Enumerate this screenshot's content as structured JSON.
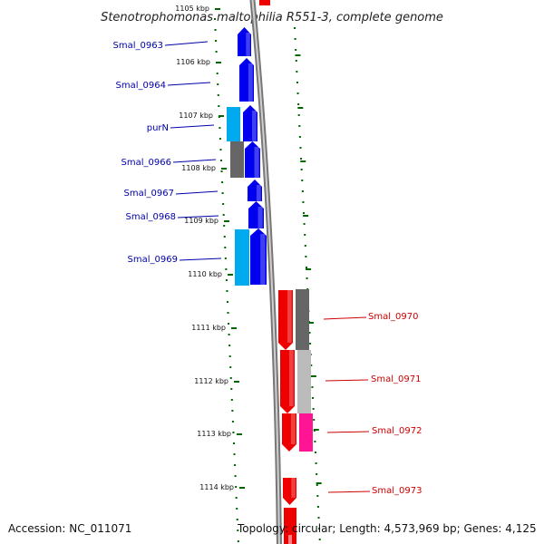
{
  "title": "Stenotrophomonas maltophilia R551-3, complete genome",
  "accession": "Accession: NC_011071",
  "stats": "Topology: circular; Length: 4,573,969 bp; Genes: 4,125",
  "ticks": [
    "1105 kbp",
    "1106 kbp",
    "1107 kbp",
    "1108 kbp",
    "1109 kbp",
    "1110 kbp",
    "1111 kbp",
    "1112 kbp",
    "1113 kbp",
    "1114 kbp"
  ],
  "colors": {
    "forward_gene": "#0000ee",
    "forward_gene_alt": "#00aaee",
    "reverse_gene": "#ee0000",
    "reverse_gene_alt": "#ff1493",
    "forward_label": "#0000aa",
    "reverse_label": "#cc0000",
    "tick_green": "#006600",
    "backbone": "#777777"
  },
  "left_genes": [
    "Smal_0963",
    "Smal_0964",
    "purN",
    "Smal_0966",
    "Smal_0967",
    "Smal_0968",
    "Smal_0969"
  ],
  "right_genes": [
    "Smal_0970",
    "Smal_0971",
    "Smal_0972",
    "Smal_0973"
  ]
}
